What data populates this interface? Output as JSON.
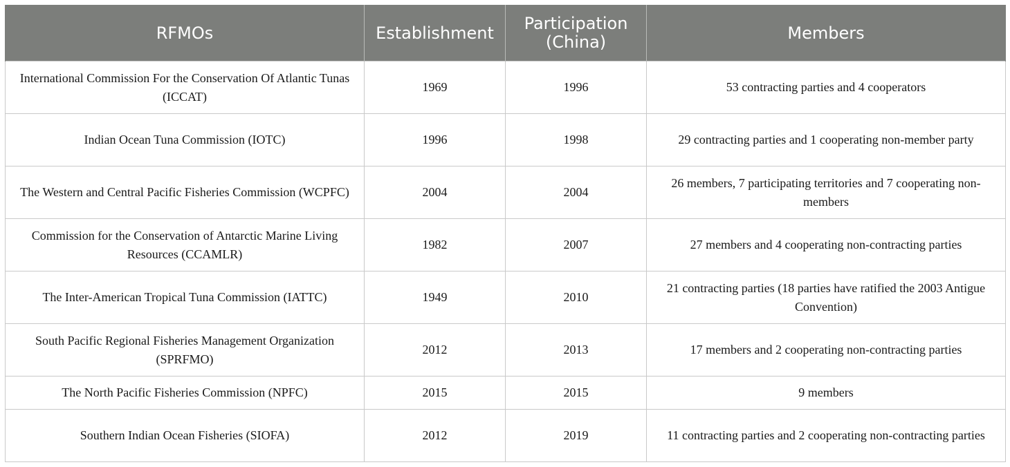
{
  "headers": [
    "RFMOs",
    "Establishment",
    "Participation (China)",
    "Members"
  ],
  "rows": [
    {
      "name": "International Commission For the Conservation Of Atlantic Tunas (ICCAT)",
      "establishment": "1969",
      "participation": "1996",
      "members": "53 contracting parties and 4 cooperators"
    },
    {
      "name": "Indian Ocean Tuna Commission (IOTC)",
      "establishment": "1996",
      "participation": "1998",
      "members": "29 contracting parties and 1 cooperating non-member party"
    },
    {
      "name": "The Western and Central Pacific Fisheries Commission (WCPFC)",
      "establishment": "2004",
      "participation": "2004",
      "members": "26 members, 7 participating territories and 7 cooperating non-members"
    },
    {
      "name": "Commission for the Conservation of Antarctic Marine Living Resources (CCAMLR)",
      "establishment": "1982",
      "participation": "2007",
      "members": "27 members and 4 cooperating non-contracting parties"
    },
    {
      "name": "The Inter-American Tropical Tuna Commission (IATTC)",
      "establishment": "1949",
      "participation": "2010",
      "members": "21 contracting parties (18 parties have ratified the 2003 Antigue Convention)"
    },
    {
      "name": "South Pacific Regional Fisheries Management Organization (SPRFMO)",
      "establishment": "2012",
      "participation": "2013",
      "members": "17 members and 2 cooperating non-contracting parties"
    },
    {
      "name": "The North Pacific Fisheries Commission (NPFC)",
      "establishment": "2015",
      "participation": "2015",
      "members": "9 members"
    },
    {
      "name": "Southern Indian Ocean Fisheries (SIOFA)",
      "establishment": "2012",
      "participation": "2019",
      "members": "11 contracting parties and 2 cooperating non-contracting parties"
    }
  ]
}
